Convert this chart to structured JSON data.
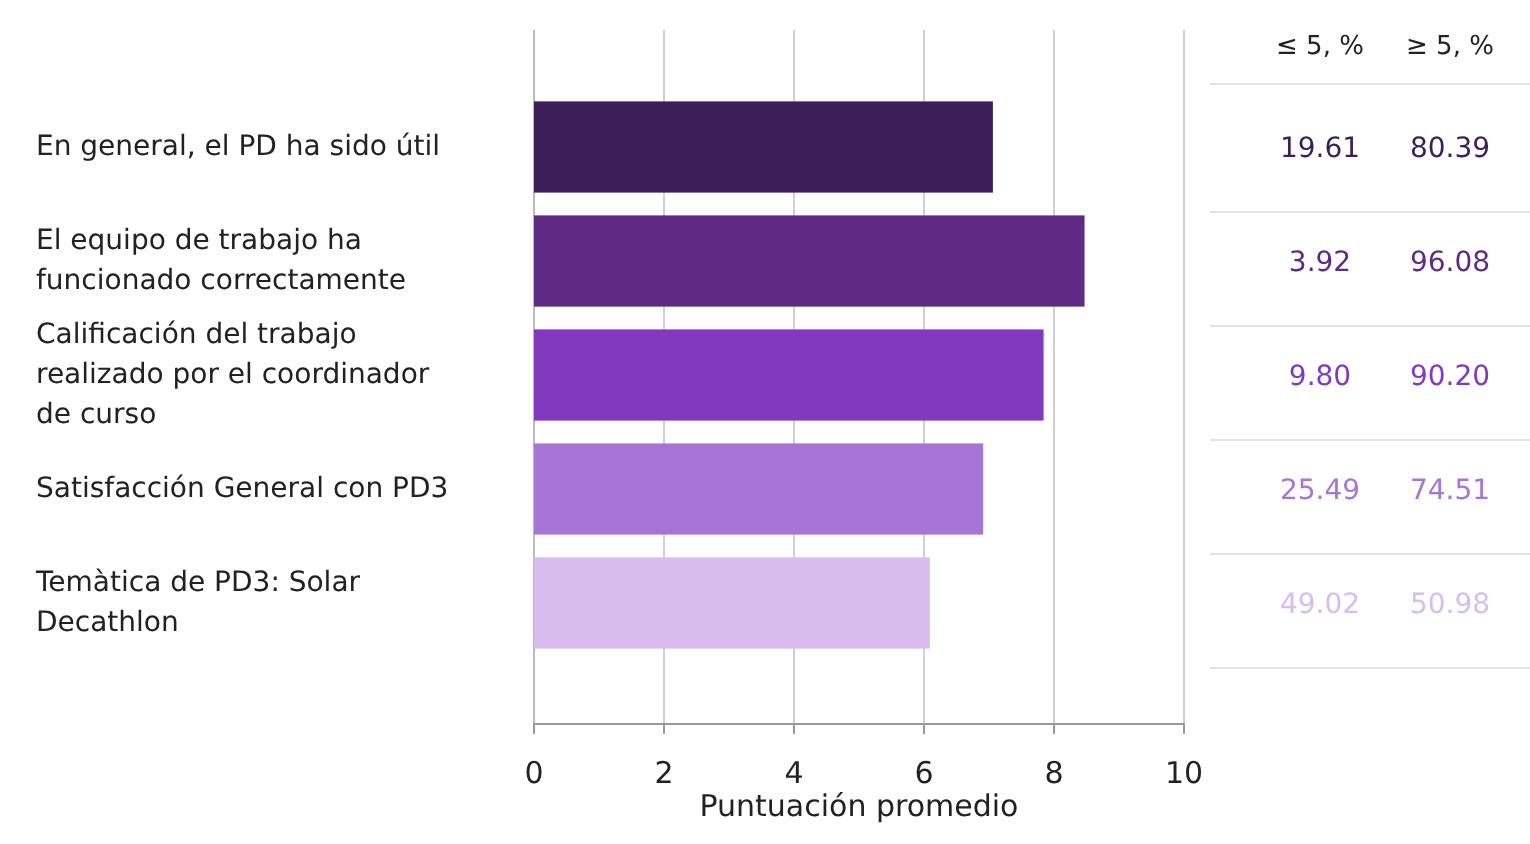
{
  "chart_data": {
    "type": "bar",
    "orientation": "horizontal",
    "xlabel": "Puntuación promedio",
    "categories": [
      "En general, el PD ha sido útil",
      "El equipo de trabajo ha funcionado correctamente",
      "Calificación del trabajo realizado por el coordinador de curso",
      "Satisfacción General con PD3",
      "Temàtica de PD3: Solar Decathlon"
    ],
    "values": [
      7.06,
      8.47,
      7.84,
      6.91,
      6.09
    ],
    "colors": [
      "#3d1e58",
      "#5e2a84",
      "#8338c0",
      "#a874d6",
      "#d7bced"
    ],
    "xlim": [
      0,
      10
    ],
    "xticks": [
      0,
      2,
      4,
      6,
      8,
      10
    ],
    "grid": "x",
    "annotations": [
      "≤ 5, %",
      "≥ 5, %",
      "19.61",
      "80.39",
      "3.92",
      "96.08",
      "9.80",
      "90.20",
      "25.49",
      "74.51",
      "49.02",
      "50.98"
    ]
  }
}
